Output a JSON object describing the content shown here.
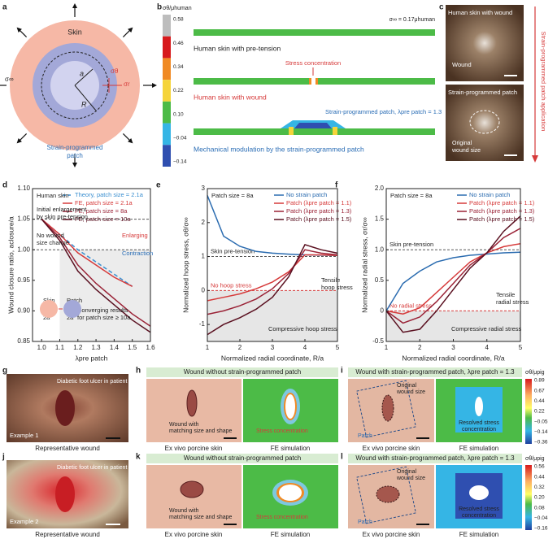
{
  "chart_data": [
    {
      "type": "line",
      "panel": "d",
      "xlabel": "λpre patch",
      "ylabel": "Wound closure ratio, aclosure/a",
      "x": [
        1,
        1.1,
        1.2,
        1.3,
        1.4,
        1.5,
        1.6
      ],
      "xlim": [
        0.95,
        1.6
      ],
      "ylim": [
        0.85,
        1.1
      ],
      "xticks": [
        {
          "value": 1,
          "label": "1.0"
        },
        1.1,
        1.2,
        1.3,
        1.4,
        1.5,
        1.6
      ],
      "yticks": [
        0.85,
        {
          "value": 0.9,
          "label": "0.90"
        },
        0.95,
        {
          "value": 1,
          "label": "1.00"
        },
        1.05,
        {
          "value": 1.1,
          "label": "1.10"
        }
      ],
      "series": [
        {
          "name": "Theory, patch size = 2.1a",
          "color": "#3a8fd0",
          "dash": true,
          "values": [
            1.05,
            1.025,
            1.0,
            0.98,
            0.96,
            0.94,
            null
          ]
        },
        {
          "name": "FE, patch size = 2.1a",
          "color": "#d63a3a",
          "dash": false,
          "values": [
            1.05,
            1.025,
            0.995,
            0.975,
            0.955,
            0.94,
            null
          ]
        },
        {
          "name": "FE, patch size = 8a",
          "color": "#9a2236",
          "dash": false,
          "values": [
            1.05,
            1.02,
            0.975,
            0.945,
            0.92,
            0.895,
            0.875
          ]
        },
        {
          "name": "FE, patch size = 10a",
          "color": "#5a1020",
          "dash": false,
          "values": [
            1.05,
            1.015,
            0.965,
            0.935,
            0.91,
            0.885,
            0.865
          ]
        }
      ],
      "reference_lines": [
        {
          "value": 1.05,
          "color": "#555555"
        },
        {
          "value": 1,
          "color": "#555555"
        }
      ],
      "annotations": [
        "Human skin",
        "Initial enlargement",
        "by skin pre-tension",
        "No wound",
        "size change",
        "Enlarging",
        "Contraction",
        "Converging results",
        "for patch size ≥ 10a",
        "Skin",
        "2a",
        "Patch",
        "2a"
      ]
    },
    {
      "type": "line",
      "panel": "e",
      "xlabel": "Normalized radial coordinate, R/a",
      "ylabel": "Normalized hoop stress, σθ/σ∞",
      "x": [
        1,
        1.5,
        2,
        2.5,
        3,
        3.5,
        4,
        4.5,
        5
      ],
      "xlim": [
        1,
        5
      ],
      "ylim": [
        -1.5,
        3
      ],
      "xticks": [
        1,
        2,
        3,
        4,
        5
      ],
      "yticks": [
        -1,
        0,
        1,
        2,
        3
      ],
      "series": [
        {
          "name": "No strain patch",
          "color": "#2b6cb0",
          "dash": false,
          "values": [
            2.8,
            1.6,
            1.3,
            1.15,
            1.1,
            1.07,
            1.05,
            1.04,
            1.03
          ]
        },
        {
          "name": "Patch (λpre patch = 1.1)",
          "color": "#d63a3a",
          "dash": false,
          "values": [
            -0.3,
            -0.2,
            -0.1,
            0.05,
            0.25,
            0.55,
            1.05,
            1.05,
            1.03
          ]
        },
        {
          "name": "Patch (λpre patch = 1.3)",
          "color": "#9a2236",
          "dash": false,
          "values": [
            -0.7,
            -0.6,
            -0.45,
            -0.25,
            0.05,
            0.5,
            1.2,
            1.1,
            1.05
          ]
        },
        {
          "name": "Patch (λpre patch = 1.5)",
          "color": "#5a1020",
          "dash": false,
          "values": [
            -1.3,
            -1.0,
            -0.8,
            -0.55,
            -0.2,
            0.4,
            1.35,
            1.2,
            1.1
          ]
        }
      ],
      "reference_lines": [
        {
          "value": 1,
          "label": "Skin pre-tension",
          "color": "#555555"
        },
        {
          "value": 0,
          "label": "No hoop stress",
          "color": "#d63a3a"
        }
      ],
      "annotations": [
        "Patch size = 8a",
        "Tensile",
        "hoop stress",
        "Compressive hoop stress"
      ]
    },
    {
      "type": "line",
      "panel": "f",
      "xlabel": "Normalized radial coordinate, R/a",
      "ylabel": "Normalized radial stress, σr/σ∞",
      "x": [
        1,
        1.5,
        2,
        2.5,
        3,
        3.5,
        4,
        4.5,
        5
      ],
      "xlim": [
        1,
        5
      ],
      "ylim": [
        -0.5,
        2
      ],
      "xticks": [
        1,
        2,
        3,
        4,
        5
      ],
      "yticks": [
        -0.5,
        0,
        0.5,
        {
          "value": 1,
          "label": "1.0"
        },
        1.5,
        {
          "value": 2,
          "label": "2.0"
        }
      ],
      "series": [
        {
          "name": "No strain patch",
          "color": "#2b6cb0",
          "dash": false,
          "values": [
            0,
            0.45,
            0.65,
            0.8,
            0.87,
            0.91,
            0.93,
            0.95,
            0.96
          ]
        },
        {
          "name": "Patch (λpre patch = 1.1)",
          "color": "#d63a3a",
          "dash": false,
          "values": [
            0,
            -0.05,
            0.05,
            0.3,
            0.55,
            0.8,
            0.95,
            1.05,
            1.1
          ]
        },
        {
          "name": "Patch (λpre patch = 1.3)",
          "color": "#9a2236",
          "dash": false,
          "values": [
            0,
            -0.2,
            -0.1,
            0.15,
            0.45,
            0.75,
            0.95,
            1.2,
            1.35
          ]
        },
        {
          "name": "Patch (λpre patch = 1.5)",
          "color": "#5a1020",
          "dash": false,
          "values": [
            0,
            -0.35,
            -0.3,
            0,
            0.35,
            0.7,
            0.95,
            1.3,
            1.55
          ]
        }
      ],
      "reference_lines": [
        {
          "value": 1,
          "label": "Skin pre-tension",
          "color": "#555555"
        },
        {
          "value": 0,
          "label": "No radial stress",
          "color": "#d63a3a"
        }
      ],
      "annotations": [
        "Patch size = 8a",
        "Tensile",
        "radial stress",
        "Compressive radial stress"
      ]
    }
  ],
  "panel_a": {
    "letter": "a",
    "skin": "Skin",
    "sigma_inf": "σ∞",
    "sigma_theta": "σθ",
    "sigma_r": "σr",
    "a": "a",
    "R": "R",
    "patch": [
      "Strain-programmed",
      "patch"
    ]
  },
  "panel_b": {
    "letter": "b",
    "colorbar_title": "σθ/μhuman",
    "colorbar_ticks": [
      "0.58",
      "0.46",
      "0.34",
      "0.22",
      "0.10",
      "−0.04",
      "−0.14"
    ],
    "far_field": "σ∞ = 0.17μhuman",
    "rows": [
      "Human skin with pre-tension",
      "Human skin with wound",
      "Mechanical modulation by the strain-programmed patch"
    ],
    "stress_concentration": "Stress concentration",
    "patch_label": "Strain-programmed patch, λpre patch = 1.3"
  },
  "panel_c": {
    "letter": "c",
    "top": "Human skin with wound",
    "wound": "Wound",
    "bottom": "Strain-programmed patch",
    "original": [
      "Original",
      "wound size"
    ],
    "arrow": "Strain-programmed patch application"
  },
  "rows": [
    {
      "left": {
        "letter": "g",
        "note": "Diabetic foot ulcer in patient",
        "example": "Example 1",
        "caption": "Representative wound"
      },
      "mid": {
        "letter": "h",
        "header": "Wound without strain-programmed patch",
        "annotation": [
          "Wound with",
          "matching size and shape"
        ],
        "stress": "Stress concentration",
        "captions": [
          "Ex vivo porcine skin",
          "FE simulation"
        ]
      },
      "right": {
        "letter": "i",
        "header": "Wound with strain-programmed patch, λpre patch = 1.3",
        "original": [
          "Original",
          "wound size"
        ],
        "patch": "Patch",
        "resolved": [
          "Resolved stress",
          "concentration"
        ],
        "captions": [
          "Ex vivo porcine skin",
          "FE simulation"
        ]
      },
      "colorbar": {
        "title": "σθ/μpig",
        "ticks": [
          "0.89",
          "0.67",
          "0.44",
          "0.22",
          "−0.05",
          "−0.14",
          "−0.36"
        ]
      }
    },
    {
      "left": {
        "letter": "j",
        "note": "Diabetic foot ulcer in patient",
        "example": "Example 2",
        "caption": "Representative wound"
      },
      "mid": {
        "letter": "k",
        "header": "Wound without strain-programmed patch",
        "annotation": [
          "Wound with",
          "matching size and shape"
        ],
        "stress": "Stress concentration",
        "captions": [
          "Ex vivo porcine skin",
          "FE simulation"
        ]
      },
      "right": {
        "letter": "l",
        "header": "Wound with strain-programmed patch, λpre patch = 1.3",
        "original": [
          "Original",
          "wound size"
        ],
        "patch": "Patch",
        "resolved": [
          "Resolved stress",
          "concentration"
        ],
        "captions": [
          "Ex vivo porcine skin",
          "FE simulation"
        ]
      },
      "colorbar": {
        "title": "σθ/μpig",
        "ticks": [
          "0.56",
          "0.44",
          "0.32",
          "0.20",
          "0.08",
          "−0.04",
          "−0.16"
        ]
      }
    }
  ]
}
